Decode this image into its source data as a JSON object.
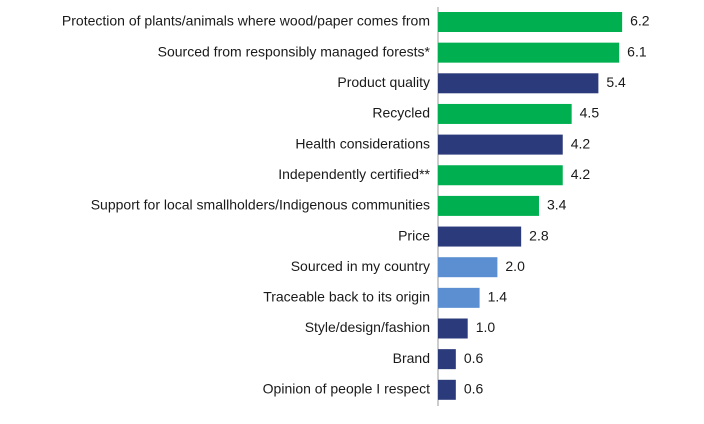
{
  "chart_data": {
    "type": "hbar",
    "categories": [
      "Protection of plants/animals where wood/paper comes from",
      "Sourced from responsibly managed forests*",
      "Product quality",
      "Recycled",
      "Health considerations",
      "Independently certified**",
      "Support for local smallholders/Indigenous communities",
      "Price",
      "Sourced in my country",
      "Traceable back to its origin",
      "Style/design/fashion",
      "Brand",
      "Opinion of people I respect"
    ],
    "values": [
      6.2,
      6.1,
      5.4,
      4.5,
      4.2,
      4.2,
      3.4,
      2.8,
      2.0,
      1.4,
      1.0,
      0.6,
      0.6
    ],
    "value_labels": [
      "6.2",
      "6.1",
      "5.4",
      "4.5",
      "4.2",
      "4.2",
      "3.4",
      "2.8",
      "2.0",
      "1.4",
      "1.0",
      "0.6",
      "0.6"
    ],
    "colors": [
      "#00b050",
      "#00b050",
      "#2b3a7a",
      "#00b050",
      "#2b3a7a",
      "#00b050",
      "#00b050",
      "#2b3a7a",
      "#5b8fd1",
      "#5b8fd1",
      "#2b3a7a",
      "#2b3a7a",
      "#2b3a7a"
    ]
  }
}
